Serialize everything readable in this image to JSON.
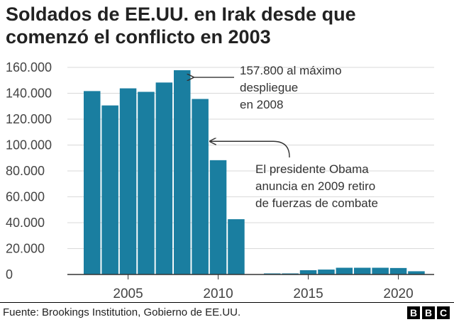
{
  "title_lines": [
    "Soldados de EE.UU. en Irak desde que",
    "comenzó el conflicto en 2003"
  ],
  "source": "Fuente: Brookings Institution, Gobierno de EE.UU.",
  "logo_letters": [
    "B",
    "B",
    "C"
  ],
  "colors": {
    "bar": "#1a7ea0",
    "grid": "#d9d9d9",
    "axis": "#333333",
    "text": "#222222"
  },
  "chart_data": {
    "type": "bar",
    "title": "Soldados de EE.UU. en Irak desde que comenzó el conflicto en 2003",
    "x": [
      2003,
      2004,
      2005,
      2006,
      2007,
      2008,
      2009,
      2010,
      2011,
      2012,
      2013,
      2014,
      2015,
      2016,
      2017,
      2018,
      2019,
      2020,
      2021
    ],
    "values": [
      141700,
      130600,
      143800,
      141100,
      148300,
      157800,
      135600,
      88300,
      42700,
      0,
      300,
      800,
      3300,
      3800,
      5200,
      5200,
      5200,
      5000,
      2500
    ],
    "ylim": [
      0,
      160000
    ],
    "yticks": [
      0,
      20000,
      40000,
      60000,
      80000,
      100000,
      120000,
      140000,
      160000
    ],
    "ytick_labels": [
      "0",
      "20.000",
      "40.000",
      "60.000",
      "80.000",
      "100.000",
      "120.000",
      "140.000",
      "160.000"
    ],
    "xticks": [
      2005,
      2010,
      2015,
      2020
    ],
    "xtick_labels": [
      "2005",
      "2010",
      "2015",
      "2020"
    ],
    "grid": true,
    "annotations": [
      {
        "lines": [
          "157.800 al máximo",
          "despliegue",
          "en 2008"
        ],
        "x": 2008,
        "y": 157800
      },
      {
        "lines": [
          "El presidente Obama",
          "anuncia en 2009 retiro",
          "de fuerzas de combate"
        ],
        "x": 2009,
        "y": 110000
      }
    ]
  }
}
